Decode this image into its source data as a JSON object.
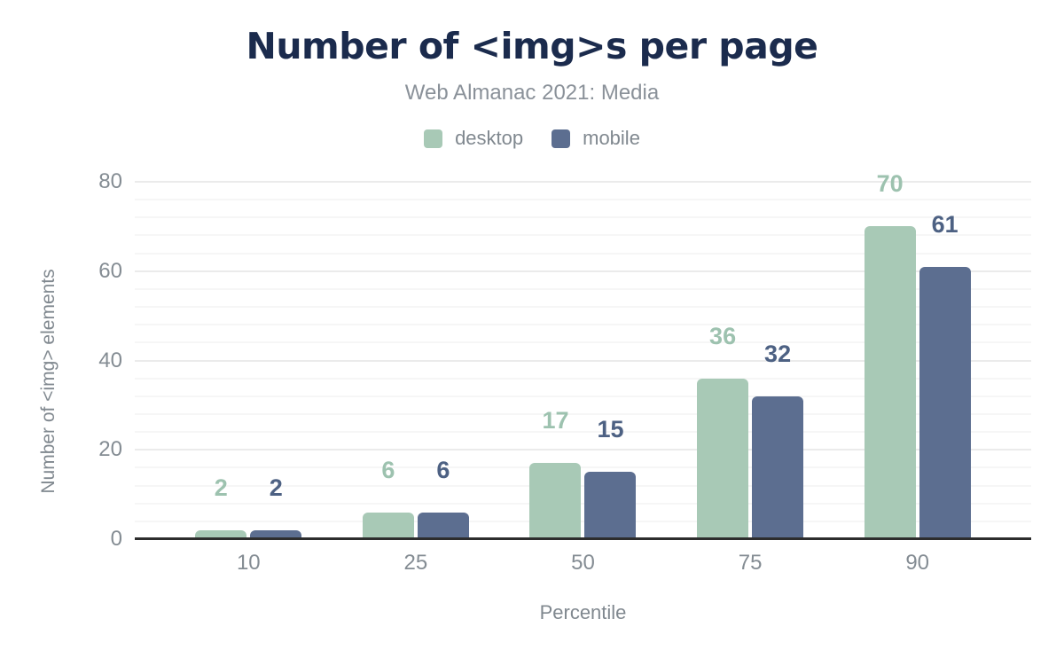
{
  "chart_data": {
    "type": "bar",
    "title": "Number of <img>s per page",
    "subtitle": "Web Almanac 2021: Media",
    "categories": [
      "10",
      "25",
      "50",
      "75",
      "90"
    ],
    "series": [
      {
        "name": "desktop",
        "color": "#a8c9b6",
        "annotation_color": "#9dc2af",
        "values": [
          2,
          6,
          17,
          36,
          70
        ]
      },
      {
        "name": "mobile",
        "color": "#5c6e90",
        "annotation_color": "#4d6183",
        "values": [
          2,
          6,
          15,
          32,
          61
        ]
      }
    ],
    "xlabel": "Percentile",
    "ylabel": "Number of <img> elements",
    "ylim": [
      0,
      80
    ],
    "yticks": [
      0,
      20,
      40,
      60,
      80
    ],
    "minor_grid_step": 4,
    "major_grid_step": 20,
    "grid": "on",
    "legend_position": "top",
    "colors": {
      "title": "#1b2b4d",
      "subtitle": "#8a9199",
      "axis_text": "#848c93",
      "axis_line": "#2d2d2d",
      "major_gridline": "#ebebeb",
      "minor_gridline": "#f6f6f6",
      "background": "#ffffff"
    }
  }
}
